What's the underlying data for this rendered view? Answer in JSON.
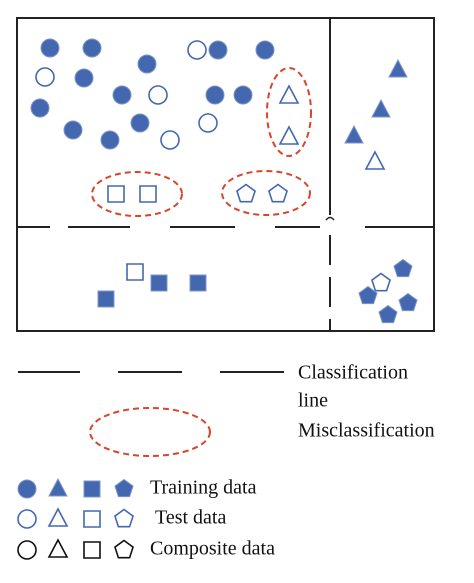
{
  "legend": {
    "line_label": [
      "Classification",
      "line"
    ],
    "misclassification_label": "Misclassification",
    "items": [
      {
        "label": "Training data"
      },
      {
        "label": "Test data"
      },
      {
        "label": "Composite data"
      }
    ]
  }
}
